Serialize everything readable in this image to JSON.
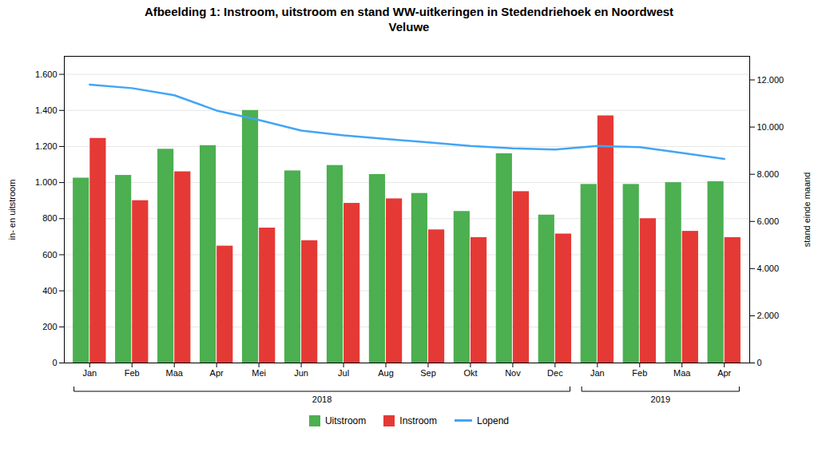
{
  "chart_data": {
    "type": "bar",
    "title": "Afbeelding 1: Instroom, uitstroom en stand WW-uitkeringen in Stedendriehoek en Noordwest\nVeluwe",
    "categories": [
      "Jan",
      "Feb",
      "Maa",
      "Apr",
      "Mei",
      "Jun",
      "Jul",
      "Aug",
      "Sep",
      "Okt",
      "Nov",
      "Dec",
      "Jan",
      "Feb",
      "Maa",
      "Apr"
    ],
    "category_years": [
      "2018",
      "2018",
      "2018",
      "2018",
      "2018",
      "2018",
      "2018",
      "2018",
      "2018",
      "2018",
      "2018",
      "2018",
      "2019",
      "2019",
      "2019",
      "2019"
    ],
    "series": [
      {
        "name": "Uitstroom",
        "type": "bar",
        "color": "#4caf50",
        "values": [
          1025,
          1040,
          1185,
          1205,
          1400,
          1065,
          1095,
          1045,
          940,
          840,
          1160,
          820,
          990,
          990,
          1000,
          1005
        ]
      },
      {
        "name": "Instroom",
        "type": "bar",
        "color": "#e53935",
        "values": [
          1245,
          900,
          1060,
          648,
          748,
          678,
          885,
          910,
          738,
          695,
          950,
          715,
          1370,
          800,
          730,
          695
        ]
      },
      {
        "name": "Lopend",
        "type": "line",
        "color": "#42a5f5",
        "axis": "y2",
        "values": [
          11800,
          11650,
          11350,
          10700,
          10300,
          9850,
          9650,
          9500,
          9350,
          9200,
          9100,
          9050,
          9200,
          9150,
          8900,
          8650
        ]
      }
    ],
    "ylabel": "in- en uitstroom",
    "y2label": "stand einde maand",
    "ylim": [
      0,
      1700
    ],
    "yticks": [
      0,
      200,
      400,
      600,
      800,
      {
        "value": 1000,
        "label": "1.000"
      },
      {
        "value": 1200,
        "label": "1.200"
      },
      {
        "value": 1400,
        "label": "1.400"
      },
      {
        "value": 1600,
        "label": "1.600"
      }
    ],
    "y2lim": [
      0,
      13000
    ],
    "y2ticks": [
      0,
      {
        "value": 2000,
        "label": "2.000"
      },
      {
        "value": 4000,
        "label": "4.000"
      },
      {
        "value": 6000,
        "label": "6.000"
      },
      {
        "value": 8000,
        "label": "8.000"
      },
      {
        "value": 10000,
        "label": "10.000"
      },
      {
        "value": 12000,
        "label": "12.000"
      }
    ],
    "grid": true,
    "legend": "bottom"
  }
}
